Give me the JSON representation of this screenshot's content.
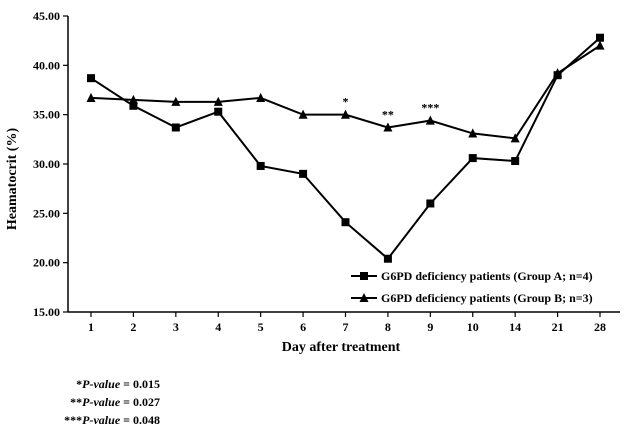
{
  "chart_data": {
    "type": "line",
    "xlabel": "Day after treatment",
    "ylabel": "Heamatocrit (%)",
    "categories": [
      "1",
      "2",
      "3",
      "4",
      "5",
      "6",
      "7",
      "8",
      "9",
      "10",
      "14",
      "21",
      "28"
    ],
    "ylim": [
      15,
      45
    ],
    "yticks": [
      "15.00",
      "20.00",
      "25.00",
      "30.00",
      "35.00",
      "40.00",
      "45.00"
    ],
    "grid": false,
    "legend_position": "bottom-right",
    "series": [
      {
        "name": "G6PD deficiency patients (Group A; n=4)",
        "marker": "square",
        "values": [
          38.7,
          35.9,
          33.7,
          35.3,
          29.8,
          29.0,
          24.1,
          20.4,
          26.0,
          30.6,
          30.3,
          39.0,
          42.8
        ]
      },
      {
        "name": "G6PD deficiency patients (Group B; n=3)",
        "marker": "triangle",
        "values": [
          36.7,
          36.5,
          36.3,
          36.3,
          36.7,
          35.0,
          35.0,
          33.7,
          34.4,
          33.1,
          32.6,
          39.2,
          42.0
        ]
      }
    ],
    "annotations": [
      {
        "category": "7",
        "text": "*"
      },
      {
        "category": "8",
        "text": "**"
      },
      {
        "category": "9",
        "text": "***"
      }
    ]
  },
  "footnotes": [
    {
      "stars": "*",
      "label": "P-value",
      "value": " = 0.015"
    },
    {
      "stars": "**",
      "label": "P-value",
      "value": " = 0.027"
    },
    {
      "stars": "***",
      "label": "P-value",
      "value": " = 0.048"
    }
  ]
}
